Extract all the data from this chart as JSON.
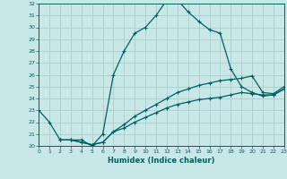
{
  "title": "",
  "xlabel": "Humidex (Indice chaleur)",
  "background_color": "#c8e8e8",
  "grid_color": "#b0d0d0",
  "line_color": "#006060",
  "xlim": [
    0,
    23
  ],
  "ylim": [
    20,
    32
  ],
  "xtick_labels": [
    "0",
    "1",
    "2",
    "3",
    "4",
    "5",
    "6",
    "7",
    "8",
    "9",
    "10",
    "11",
    "12",
    "13",
    "14",
    "15",
    "16",
    "17",
    "18",
    "19",
    "20",
    "21",
    "22",
    "23"
  ],
  "ytick_labels": [
    "20",
    "21",
    "22",
    "23",
    "24",
    "25",
    "26",
    "27",
    "28",
    "29",
    "30",
    "31",
    "32"
  ],
  "curve1_x": [
    0,
    1,
    2,
    3,
    4,
    5,
    6,
    7,
    8,
    9,
    10,
    11,
    12,
    13,
    14,
    15,
    16,
    17,
    18,
    19,
    20,
    21,
    22,
    23
  ],
  "curve1_y": [
    23.0,
    22.0,
    20.5,
    20.5,
    20.5,
    20.0,
    21.0,
    26.0,
    28.0,
    29.5,
    30.0,
    31.0,
    32.3,
    32.3,
    31.3,
    30.5,
    29.8,
    29.5,
    26.5,
    25.0,
    24.5,
    24.2,
    24.3,
    24.8
  ],
  "curve2_x": [
    2,
    3,
    4,
    5,
    6,
    7,
    8,
    9,
    10,
    11,
    12,
    13,
    14,
    15,
    16,
    17,
    18,
    19,
    20,
    21,
    22,
    23
  ],
  "curve2_y": [
    20.5,
    20.5,
    20.3,
    20.1,
    20.3,
    21.2,
    21.5,
    22.0,
    22.4,
    22.8,
    23.2,
    23.5,
    23.7,
    23.9,
    24.0,
    24.1,
    24.3,
    24.5,
    24.4,
    24.3,
    24.3,
    24.8
  ],
  "curve3_x": [
    2,
    3,
    4,
    5,
    6,
    7,
    8,
    9,
    10,
    11,
    12,
    13,
    14,
    15,
    16,
    17,
    18,
    19,
    20,
    21,
    22,
    23
  ],
  "curve3_y": [
    20.5,
    20.5,
    20.3,
    20.1,
    20.3,
    21.2,
    21.8,
    22.5,
    23.0,
    23.5,
    24.0,
    24.5,
    24.8,
    25.1,
    25.3,
    25.5,
    25.6,
    25.7,
    25.9,
    24.5,
    24.4,
    25.0
  ]
}
